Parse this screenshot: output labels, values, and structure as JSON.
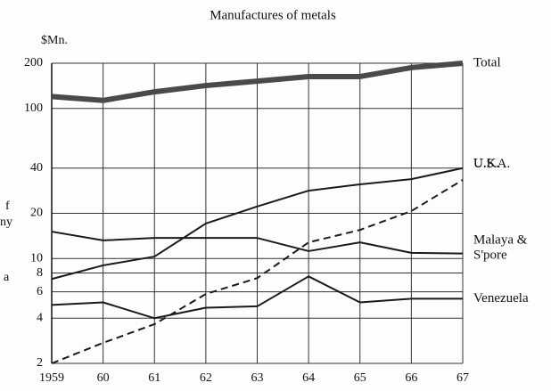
{
  "chart_data": {
    "type": "line",
    "title": "Manufactures of metals",
    "y_unit_label": "$Mn.",
    "categories": [
      "1959",
      "60",
      "61",
      "62",
      "63",
      "64",
      "65",
      "66",
      "67"
    ],
    "ylim": [
      2,
      200
    ],
    "yticks": [
      2,
      4,
      6,
      8,
      10,
      20,
      40,
      100,
      200
    ],
    "log_scale": true,
    "grid": true,
    "series": [
      {
        "name": "Total",
        "color": "#4a4a4a",
        "style": "thick",
        "values": [
          120,
          113,
          129,
          142,
          152,
          163,
          163,
          187,
          200
        ]
      },
      {
        "name": "U.S.A.",
        "color": "#1a1a1a",
        "style": "solid",
        "values": [
          7.3,
          9.0,
          10.3,
          17.1,
          22.2,
          28.3,
          31.2,
          33.8,
          40
        ]
      },
      {
        "name": "U.K.",
        "color": "#1a1a1a",
        "style": "dashed",
        "values": [
          2,
          2.74,
          3.65,
          5.8,
          7.4,
          12.8,
          15.5,
          20.7,
          33.4
        ]
      },
      {
        "name": "Malaya & S'pore",
        "color": "#1a1a1a",
        "style": "solid",
        "values": [
          15.1,
          13.2,
          13.7,
          13.7,
          13.7,
          11.2,
          12.8,
          10.9,
          10.8
        ]
      },
      {
        "name": "Venezuela",
        "color": "#1a1a1a",
        "style": "solid",
        "values": [
          4.9,
          5.1,
          4.0,
          4.7,
          4.8,
          7.6,
          5.1,
          5.4,
          5.4
        ]
      }
    ],
    "margin_fragments": [
      "f",
      "ny",
      "a"
    ]
  }
}
